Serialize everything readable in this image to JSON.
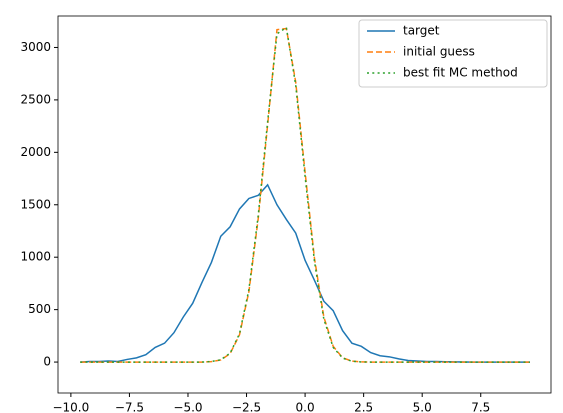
{
  "chart_data": {
    "type": "line",
    "x": [
      -9.6,
      -9.2,
      -8.8,
      -8.4,
      -8.0,
      -7.6,
      -7.2,
      -6.8,
      -6.4,
      -6.0,
      -5.6,
      -5.2,
      -4.8,
      -4.4,
      -4.0,
      -3.6,
      -3.2,
      -2.8,
      -2.4,
      -2.0,
      -1.6,
      -1.2,
      -0.8,
      -0.4,
      0.0,
      0.4,
      0.8,
      1.2,
      1.6,
      2.0,
      2.4,
      2.8,
      3.2,
      3.6,
      4.0,
      4.4,
      4.8,
      5.2,
      5.6,
      6.0,
      6.4,
      6.8,
      7.2,
      7.6,
      8.0,
      8.4,
      8.8,
      9.2,
      9.6
    ],
    "series": [
      {
        "name": "target",
        "color": "#1f77b4",
        "dash": "solid",
        "values": [
          0,
          5,
          5,
          10,
          5,
          25,
          40,
          70,
          140,
          180,
          280,
          430,
          560,
          760,
          950,
          1200,
          1290,
          1460,
          1560,
          1590,
          1690,
          1500,
          1360,
          1230,
          970,
          780,
          580,
          490,
          300,
          180,
          150,
          90,
          60,
          50,
          30,
          15,
          10,
          5,
          5,
          3,
          2,
          1,
          0,
          0,
          0,
          0,
          0,
          0,
          0
        ]
      },
      {
        "name": "initial guess",
        "color": "#ff7f0e",
        "dash": "dashed",
        "values": [
          0,
          0,
          0,
          0,
          0,
          0,
          0,
          0,
          0,
          0,
          0,
          0,
          0,
          0,
          4,
          20,
          81,
          260,
          670,
          1370,
          2260,
          3170,
          3180,
          2670,
          1810,
          990,
          430,
          150,
          41,
          9,
          2,
          0,
          0,
          0,
          0,
          0,
          0,
          0,
          0,
          0,
          0,
          0,
          0,
          0,
          0,
          0,
          0,
          0,
          0
        ]
      },
      {
        "name": "best fit MC method",
        "color": "#2ca02c",
        "dash": "dotted",
        "values": [
          0,
          0,
          0,
          0,
          0,
          0,
          0,
          0,
          0,
          0,
          0,
          0,
          0,
          0,
          5,
          22,
          85,
          270,
          690,
          1400,
          2290,
          3130,
          3190,
          2640,
          1770,
          960,
          410,
          140,
          38,
          8,
          1,
          0,
          0,
          0,
          0,
          0,
          0,
          0,
          0,
          0,
          0,
          0,
          0,
          0,
          0,
          0,
          0,
          0,
          0
        ]
      }
    ],
    "xlim": [
      -10.55,
      10.5
    ],
    "ylim": [
      -295,
      3300
    ],
    "xticks": [
      {
        "value": -10,
        "label": "−10.0"
      },
      {
        "value": -7.5,
        "label": "−7.5"
      },
      {
        "value": -5,
        "label": "−5.0"
      },
      {
        "value": -2.5,
        "label": "−2.5"
      },
      {
        "value": 0,
        "label": "0.0"
      },
      {
        "value": 2.5,
        "label": "2.5"
      },
      {
        "value": 5,
        "label": "5.0"
      },
      {
        "value": 7.5,
        "label": "7.5"
      }
    ],
    "yticks": [
      0,
      500,
      1000,
      1500,
      2000,
      2500,
      3000
    ],
    "legend": "upper right",
    "grid": false
  }
}
